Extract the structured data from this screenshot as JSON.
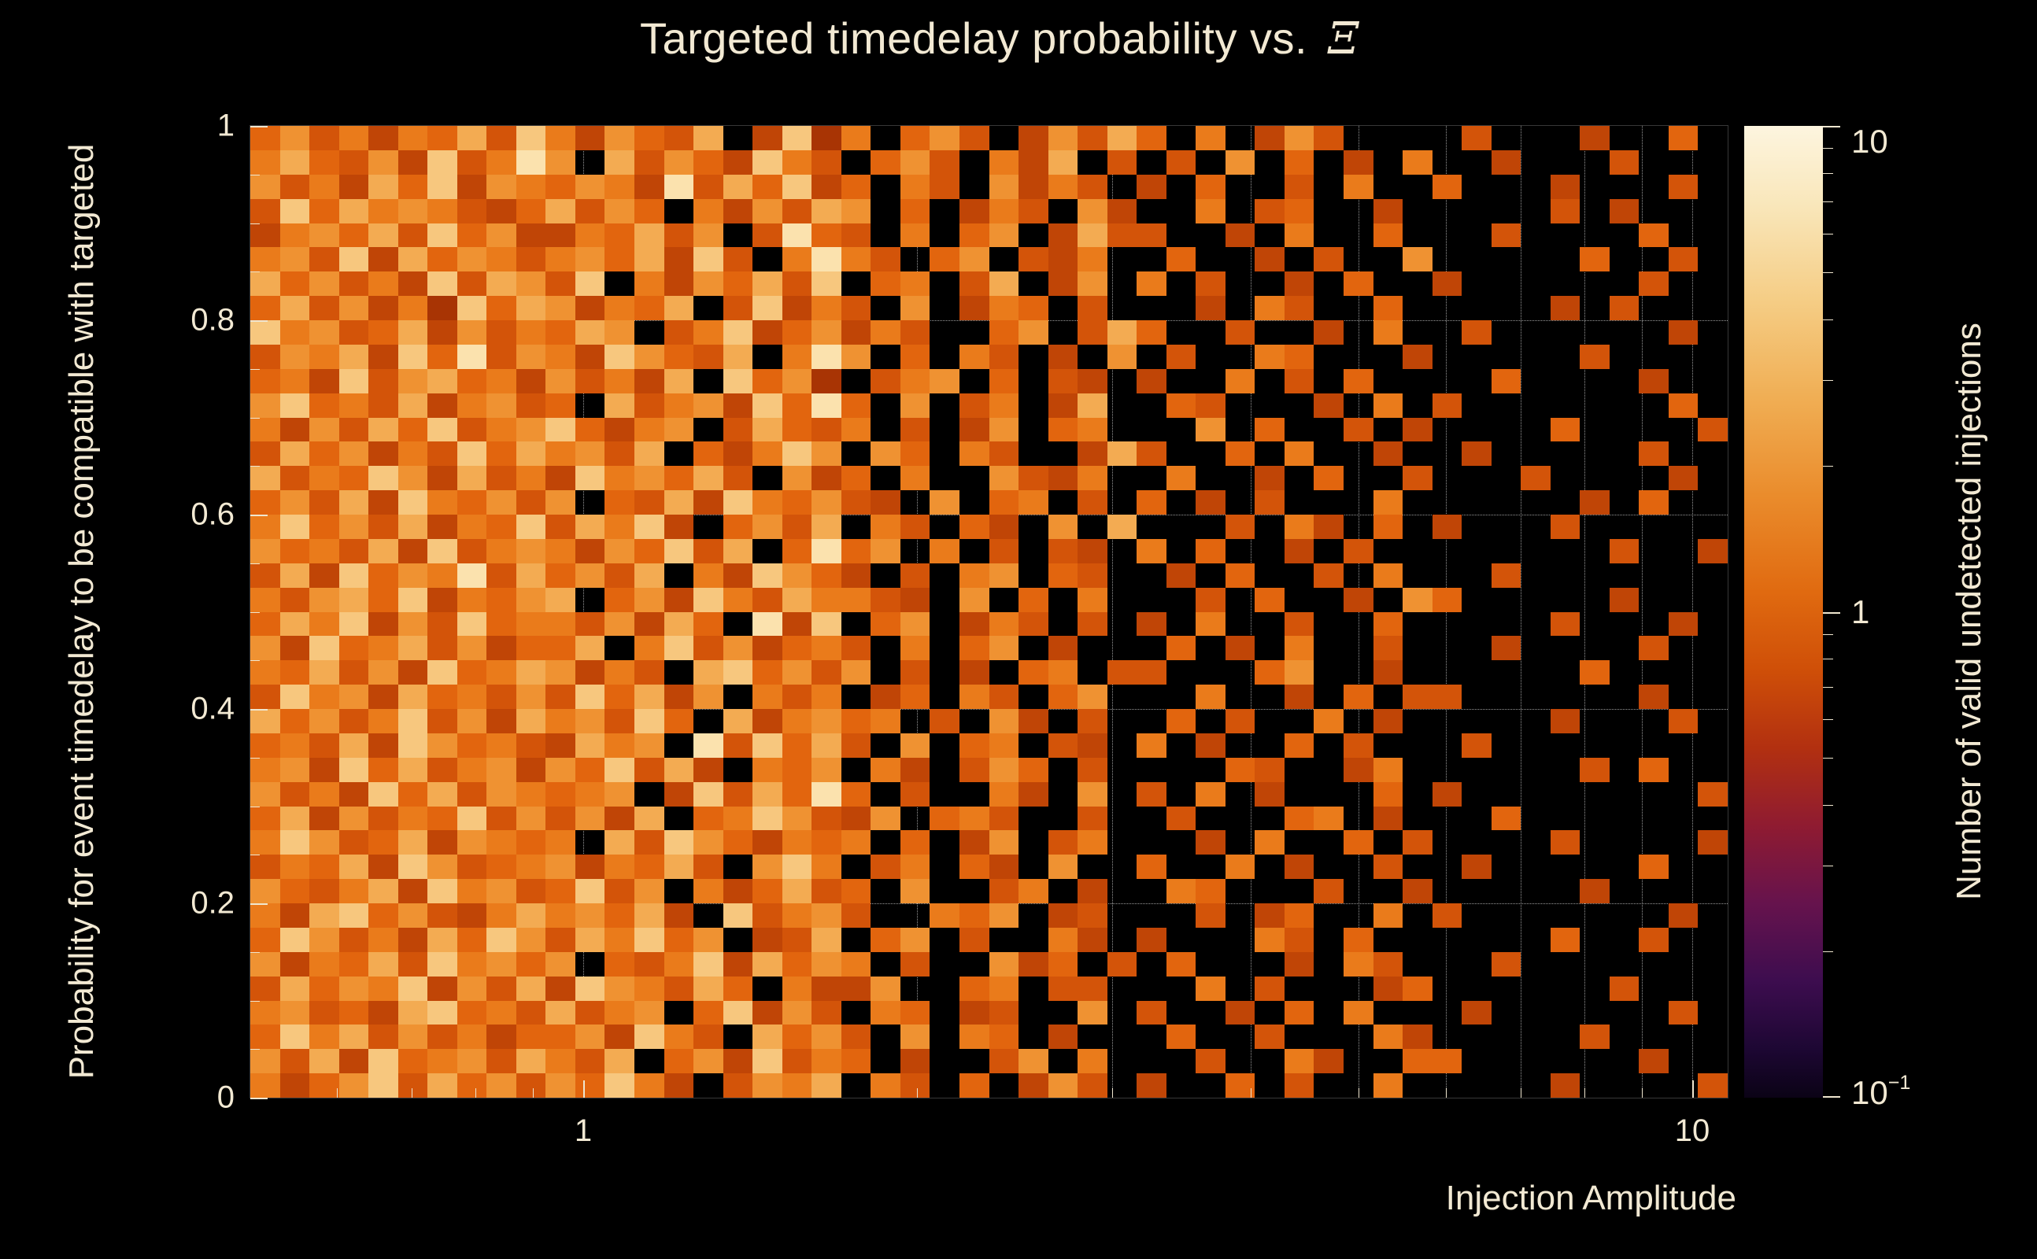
{
  "chart_data": {
    "type": "heatmap",
    "title": "Targeted timedelay probability vs.  Ξ",
    "title_parts": {
      "text": "Targeted timedelay probability vs. ",
      "symbol": "Ξ"
    },
    "xlabel": "Injection Amplitude",
    "ylabel": "Probability for event timedelay to be compatible with targeted",
    "colorbar_label": "Number of valid undetected injections",
    "x_scale": "log",
    "x_range": [
      0.5,
      10.8
    ],
    "x_major_ticks": [
      {
        "value": 1,
        "label": "1"
      },
      {
        "value": 10,
        "label": "10"
      }
    ],
    "x_minor_ticks": [
      0.6,
      0.7,
      0.8,
      0.9,
      2,
      3,
      4,
      5,
      6,
      7,
      8,
      9
    ],
    "x_grid_values": [
      0.6,
      0.7,
      0.8,
      0.9,
      1,
      2,
      3,
      4,
      5,
      6,
      7,
      8,
      9,
      10
    ],
    "y_range": [
      0,
      1
    ],
    "y_major_ticks": [
      {
        "value": 0,
        "label": "0"
      },
      {
        "value": 0.2,
        "label": "0.2"
      },
      {
        "value": 0.4,
        "label": "0.4"
      },
      {
        "value": 0.6,
        "label": "0.6"
      },
      {
        "value": 0.8,
        "label": "0.8"
      },
      {
        "value": 1,
        "label": "1"
      }
    ],
    "y_minor_step": 0.05,
    "y_grid_values": [
      0.2,
      0.4,
      0.6,
      0.8
    ],
    "z_scale": "log",
    "z_range": [
      0.1,
      10
    ],
    "z_major_ticks": [
      {
        "value": 10,
        "label": "10"
      },
      {
        "value": 1,
        "label": "1"
      },
      {
        "value": 0.1,
        "label": "10",
        "sup": "−1"
      }
    ],
    "z_minor_ticks": [
      0.2,
      0.3,
      0.4,
      0.5,
      0.6,
      0.7,
      0.8,
      0.9,
      2,
      3,
      4,
      5,
      6,
      7,
      8,
      9
    ],
    "grid": true,
    "legend_position": "right-colorbar",
    "colors": {
      "background": "#000000",
      "text": "#f2e9d3",
      "tick": "#efe6cf",
      "gridline": "rgba(255,255,255,0.6)"
    },
    "palette": {
      "0": "transparent",
      "1": "#a83404",
      "2": "#c04506",
      "3": "#d35409",
      "4": "#e2650e",
      "5": "#ea7b1b",
      "6": "#ef9232",
      "7": "#f3ab52",
      "8": "#f7c77e",
      "9": "#fbe2ae"
    },
    "colorbar_gradient": [
      [
        "0%",
        "#fdf5df"
      ],
      [
        "8%",
        "#f9e7bb"
      ],
      [
        "18%",
        "#f5cd85"
      ],
      [
        "28%",
        "#f0ae54"
      ],
      [
        "38%",
        "#ea8c2c"
      ],
      [
        "48%",
        "#e06a10"
      ],
      [
        "56%",
        "#cf4f08"
      ],
      [
        "64%",
        "#b23010"
      ],
      [
        "72%",
        "#8f1b31"
      ],
      [
        "80%",
        "#66134d"
      ],
      [
        "88%",
        "#3d0d4f"
      ],
      [
        "95%",
        "#1d0733"
      ],
      [
        "100%",
        "#0b0316"
      ]
    ],
    "bins": {
      "cols": 50,
      "rows": 40,
      "encoding": "rows listed top (y=1) to bottom (y=0); chars left (x~0.5) to right (x~10.8); 0 = empty bin (black), 1-9 = increasing bin count on the log color scale",
      "row_strings": [
        "46352547385264370281504630263740502630000300020040",
        "57436283596073642853046305270303060402050020003000",
        "63527482654652937482405306253020400305004000200030",
        "38475653247364052637604025306200503400200000302000",
        "25647384622547360394305046027330020500400030000400",
        "56382746535647283059530460325004002030060000040030",
        "74635283763805264738045037026050300204002000000300",
        "47362518476254703825306025403000205300400000203000",
        "85634726354760358246253004603740030020500300000020",
        "36572849365286437059604053020603005400020000030000",
        "45283674526352708461035604032020050304000040000200",
        "68453725634073562849406035027004300020503000000040",
        "52637483568425603743503026045000604003020000400003",
        "37462538475637042586064053002730040500200200000300",
        "73548627352856473062405006325005002040030003000020",
        "46372854636043728546320604503040203000500000020400",
        "58463725483758204637053042060700030520402000300000",
        "64537283565264837049460503032050400203000000003002",
        "37284659374637052864203056043002040030500030000000",
        "53674825467046285375532060405000304002064000002000",
        "47582638455362740928046025303020500300400000300020",
        "62845736244705836245305046020004020500300020000300",
        "54736284576253078463603020450330004600200000040000",
        "38562745363847260535024053046000500204033000000200",
        "74635836275638407256450306203004030050200000200030",
        "45372864532756093847306045032050200403000300000000",
        "56284735626483720546052036403000043002500000030400",
        "63528473654560283749403005206030502000402000000003",
        "47263548363627045863260453003003000450200040000000",
        "58634726545073864254504026035000205004030000300002",
        "35472863456254730685035042060040050200300200000400",
        "64357285634836052473406003502005400030020000020000",
        "52784632575647208356300546023000302400503000000020",
        "48635274863758460237046030052020005304000000400300",
        "62547385646043582746503006240304000205300030000000",
        "37465826372865374052260045033000503000240000003000",
        "56342784537356048263054023006030020405000200000030",
        "48573635244628530746306054020004003000520000030000",
        "63728456375370462835402003605000300520044000000200",
        "52468374636485203657053040263020040300500000200003"
      ]
    }
  }
}
